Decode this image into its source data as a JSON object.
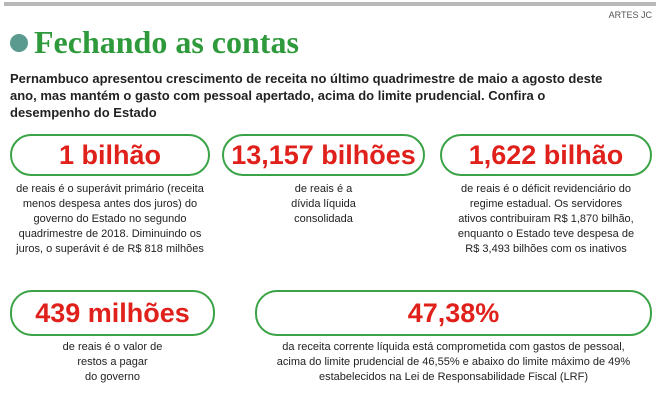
{
  "credit": "ARTES JC",
  "title": "Fechando as contas",
  "intro": [
    "Pernambuco apresentou crescimento de receita no último quadrimestre de maio a agosto deste",
    "ano, mas mantém o gasto com pessoal apertado, acima do limite prudencial. Confira o",
    "desempenho do Estado"
  ],
  "cards": [
    {
      "figure": "1 bilhão",
      "lines": [
        "de reais é o superávit primário (receita",
        "menos despesa antes dos juros) do",
        "governo do Estado no segundo",
        "quadrimestre de 2018. Diminuindo os",
        "juros, o superávit é de R$ 818 milhões"
      ]
    },
    {
      "figure": "13,157 bilhões",
      "lines": [
        "de reais é a",
        "dívida líquida",
        "consolidada"
      ]
    },
    {
      "figure": "1,622 bilhão",
      "lines": [
        "de reais é o déficit revidenciário do",
        "regime estadual. Os servidores",
        "ativos contribuiram R$ 1,870 bilhão,",
        "enquanto o Estado teve despesa de",
        "R$ 3,493 bilhões com os inativos"
      ]
    },
    {
      "figure": "439 milhões",
      "lines": [
        "de reais é o valor de",
        "restos a pagar",
        "do governo"
      ]
    },
    {
      "figure": "47,38%",
      "lines": [
        "da receita corrente líquida está comprometida com gastos de pessoal,",
        "acima do limite prudencial de 46,55% e abaixo do limite máximo de 49%",
        "estabelecidos na Lei de Responsabilidade Fiscal (LRF)"
      ]
    }
  ]
}
